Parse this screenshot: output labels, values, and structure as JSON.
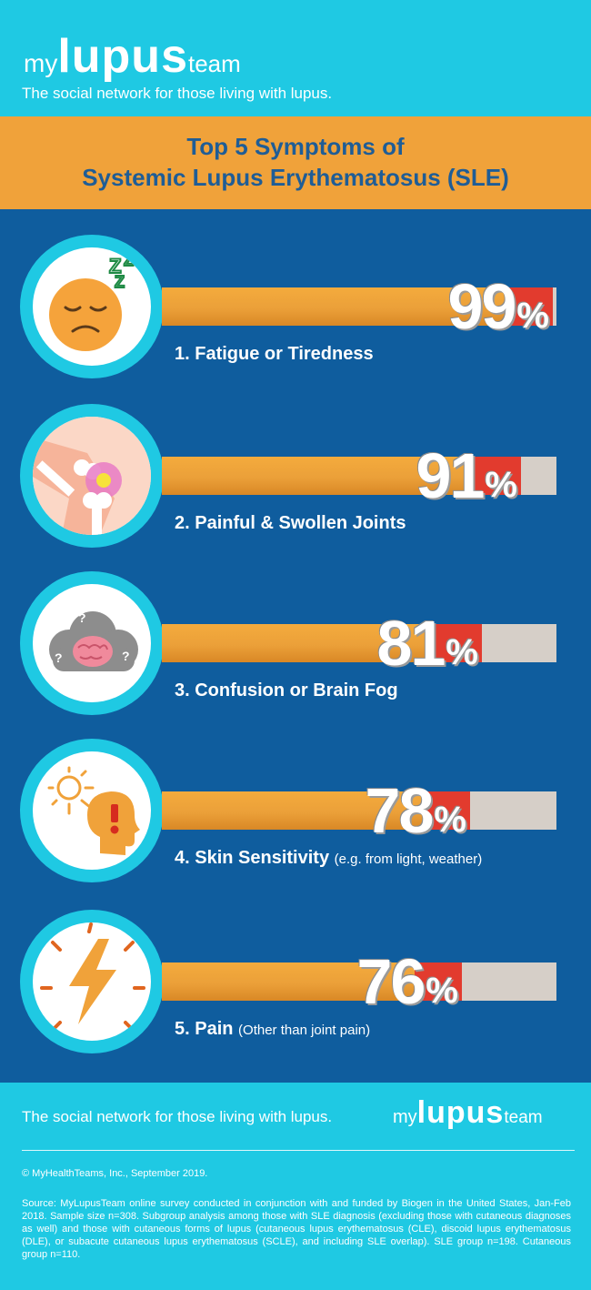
{
  "header": {
    "logo": {
      "my": "my",
      "lupus": "lupus",
      "team": "team"
    },
    "tagline": "The social network for those living with lupus."
  },
  "title": {
    "line1": "Top 5 Symptoms of",
    "line2": "Systemic Lupus Erythematosus (SLE)"
  },
  "chart_data": {
    "type": "bar",
    "title": "Top 5 Symptoms of Systemic Lupus Erythematosus (SLE)",
    "categories": [
      "1. Fatigue or Tiredness",
      "2. Painful & Swollen Joints",
      "3. Confusion or Brain Fog",
      "4. Skin Sensitivity",
      "5. Pain"
    ],
    "notes": [
      "",
      "",
      "",
      "(e.g. from light, weather)",
      "(Other than joint pain)"
    ],
    "values": [
      99,
      91,
      81,
      78,
      76
    ],
    "value_labels": [
      "99",
      "91",
      "81",
      "78",
      "76"
    ],
    "unit": "%",
    "ylim": [
      0,
      100
    ],
    "icons": [
      "sleepy-face-icon",
      "knee-joint-icon",
      "brain-fog-icon",
      "sun-sensitivity-icon",
      "lightning-pain-icon"
    ]
  },
  "colors": {
    "cyan": "#1fc9e3",
    "navy": "#0f5d9e",
    "orange": "#f0a23a",
    "red": "#e23b2e",
    "track": "#d6cfc8"
  },
  "footer": {
    "tagline": "The social network for those living with lupus.",
    "logo": {
      "my": "my",
      "lupus": "lupus",
      "team": "team"
    },
    "copyright": "© MyHealthTeams, Inc., September 2019.",
    "source": "Source: MyLupusTeam online survey conducted in conjunction with and funded by Biogen in the United States, Jan-Feb 2018. Sample size n=308. Subgroup analysis among those with SLE diagnosis (excluding those with cutaneous diagnoses as well) and those with cutaneous forms of lupus (cutaneous lupus erythematosus (CLE), discoid lupus erythematosus (DLE), or subacute cutaneous lupus erythematosus (SCLE), and including SLE overlap). SLE group n=198.  Cutaneous group n=110."
  }
}
